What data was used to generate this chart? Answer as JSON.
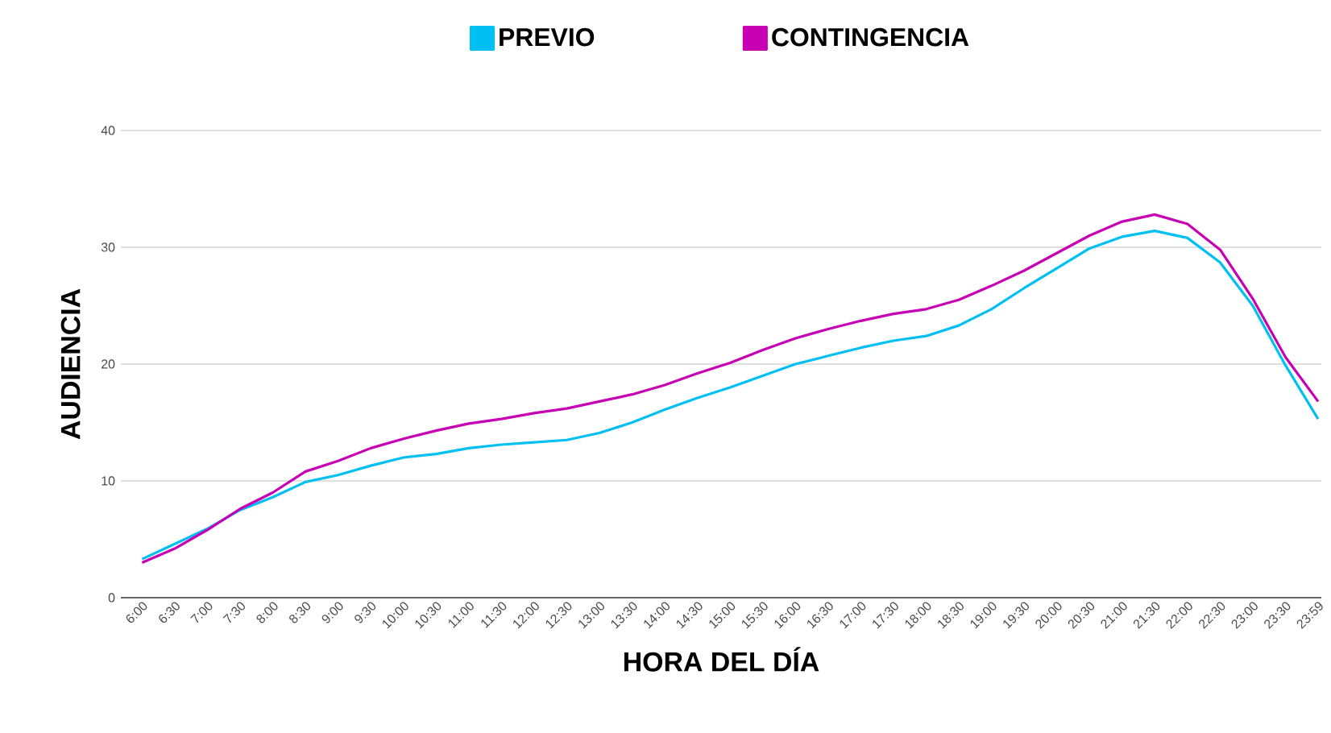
{
  "chart_data": {
    "type": "line",
    "xlabel": "HORA DEL DÍA",
    "ylabel": "AUDIENCIA",
    "categories": [
      "6:00",
      "6:30",
      "7:00",
      "7:30",
      "8:00",
      "8:30",
      "9:00",
      "9:30",
      "10:00",
      "10:30",
      "11:00",
      "11:30",
      "12:00",
      "12:30",
      "13:00",
      "13:30",
      "14:00",
      "14:30",
      "15:00",
      "15:30",
      "16:00",
      "16:30",
      "17:00",
      "17:30",
      "18:00",
      "18:30",
      "19:00",
      "19:30",
      "20:00",
      "20:30",
      "21:00",
      "21:30",
      "22:00",
      "22:30",
      "23:00",
      "23:30",
      "23:59"
    ],
    "series": [
      {
        "name": "PREVIO",
        "color": "#00bff3",
        "values": [
          3.3,
          4.6,
          5.9,
          7.5,
          8.6,
          9.9,
          10.5,
          11.3,
          12.0,
          12.3,
          12.8,
          13.1,
          13.3,
          13.5,
          14.1,
          15.0,
          16.1,
          17.1,
          18.0,
          19.0,
          20.0,
          20.7,
          21.4,
          22.0,
          22.4,
          23.3,
          24.7,
          26.5,
          28.2,
          29.9,
          30.9,
          31.4,
          30.8,
          28.7,
          25.0,
          19.9,
          15.3
        ]
      },
      {
        "name": "CONTINGENCIA",
        "color": "#c800b4",
        "values": [
          3.0,
          4.2,
          5.8,
          7.6,
          9.0,
          10.8,
          11.7,
          12.8,
          13.6,
          14.3,
          14.9,
          15.3,
          15.8,
          16.2,
          16.8,
          17.4,
          18.2,
          19.2,
          20.1,
          21.2,
          22.2,
          23.0,
          23.7,
          24.3,
          24.7,
          25.5,
          26.7,
          28.0,
          29.5,
          31.0,
          32.2,
          32.8,
          32.0,
          29.8,
          25.6,
          20.6,
          16.8
        ]
      }
    ],
    "ylim": [
      0,
      40
    ],
    "yticks": [
      0,
      10,
      20,
      30,
      40
    ],
    "grid": "y",
    "legend": "top",
    "marker": "none",
    "line_style": "solid"
  }
}
